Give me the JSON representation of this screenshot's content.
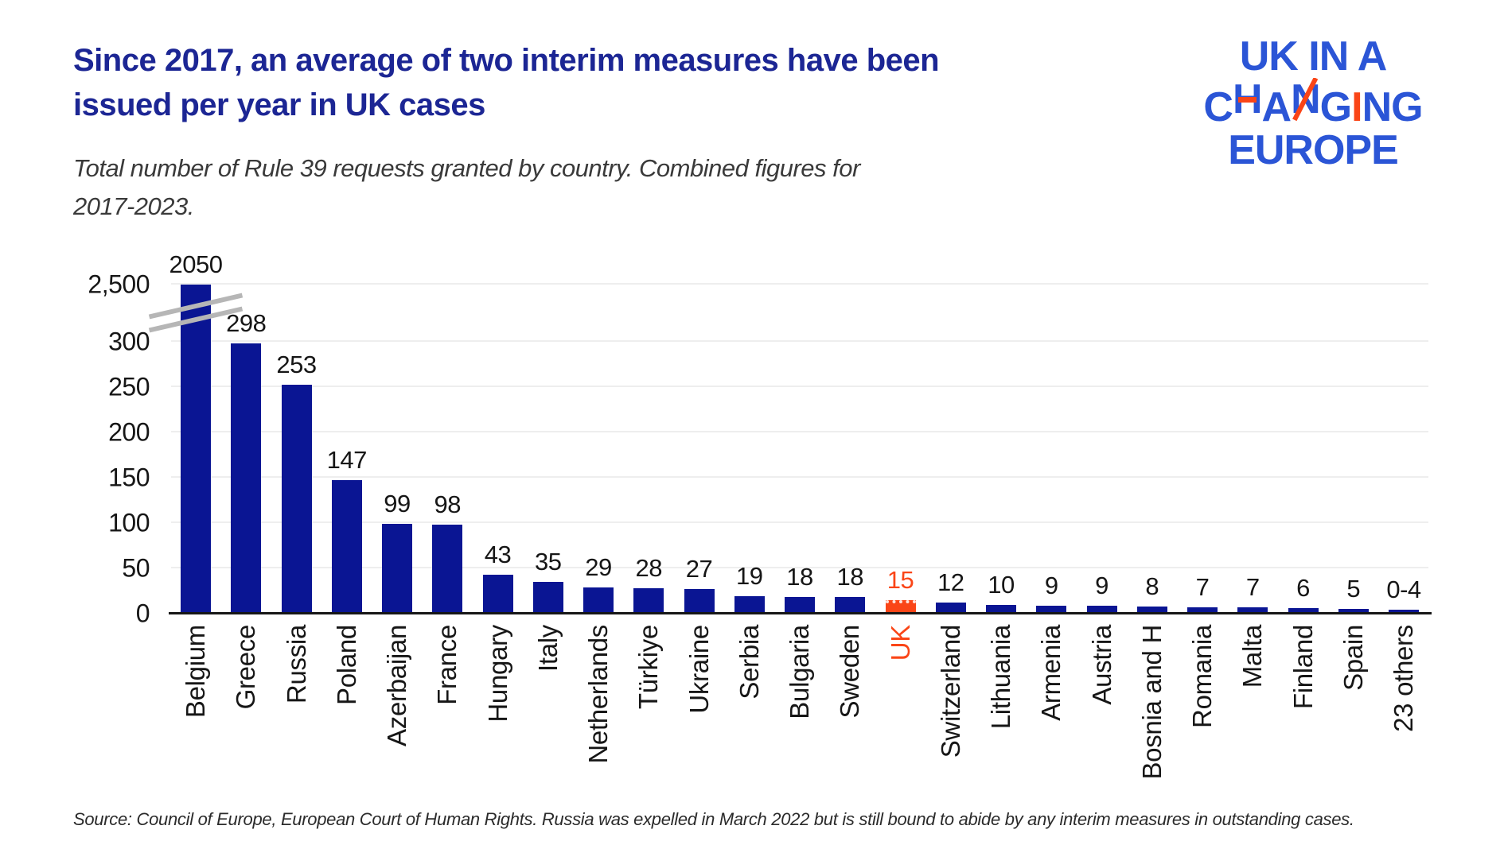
{
  "header": {
    "title_line1": "Since 2017, an average of two interim measures have been",
    "title_line2": "issued per year in UK cases",
    "subtitle_line1": "Total number of Rule 39 requests granted by country. Combined figures for",
    "subtitle_line2": "2017-2023."
  },
  "logo": {
    "line1": "UK IN A",
    "line2": "CHANGING",
    "line3": "EUROPE",
    "accents": {
      "h_index": 1,
      "n_index": 3,
      "i_index": 5
    }
  },
  "source": "Source: Council of Europe, European Court of Human Rights. Russia was expelled in March 2022 but is still bound to abide by any interim measures in outstanding cases.",
  "colors": {
    "navy": "#0a1593",
    "orange": "#fa4517",
    "title": "#1c2694",
    "logoblue": "#2b55d6",
    "grid": "#eeeeee",
    "axis": "#161616",
    "break": "#b6b6b6",
    "ink": "#161616",
    "muted": "#3a3a3a"
  },
  "chart_data": {
    "type": "bar",
    "title": "Since 2017, an average of two interim measures have been issued per year in UK cases",
    "subtitle": "Total number of Rule 39 requests granted by country. Combined figures for 2017-2023.",
    "categories": [
      "Belgium",
      "Greece",
      "Russia",
      "Poland",
      "Azerbaijan",
      "France",
      "Hungary",
      "Italy",
      "Netherlands",
      "Türkiye",
      "Ukraine",
      "Serbia",
      "Bulgaria",
      "Sweden",
      "UK",
      "Switzerland",
      "Lithuania",
      "Armenia",
      "Austria",
      "Bosnia and H",
      "Romania",
      "Malta",
      "Finland",
      "Spain",
      "23 others"
    ],
    "values": [
      2050,
      298,
      253,
      147,
      99,
      98,
      43,
      35,
      29,
      28,
      27,
      19,
      18,
      18,
      15,
      12,
      10,
      9,
      9,
      8,
      7,
      7,
      6,
      5,
      4
    ],
    "value_labels": [
      "2050",
      "298",
      "253",
      "147",
      "99",
      "98",
      "43",
      "35",
      "29",
      "28",
      "27",
      "19",
      "18",
      "18",
      "15",
      "12",
      "10",
      "9",
      "9",
      "8",
      "7",
      "7",
      "6",
      "5",
      "0-4"
    ],
    "highlight_category": "UK",
    "highlight_index": 14,
    "highlight_color": "#fa4517",
    "bar_color": "#0a1593",
    "y_ticks": [
      0,
      50,
      100,
      150,
      200,
      250,
      300
    ],
    "y_tick_labels": [
      "0",
      "50",
      "100",
      "150",
      "200",
      "250",
      "300"
    ],
    "y_break_top_label": "2,500",
    "axis_break": true,
    "grid": true,
    "legend": false,
    "x_label_rotation": 90
  }
}
